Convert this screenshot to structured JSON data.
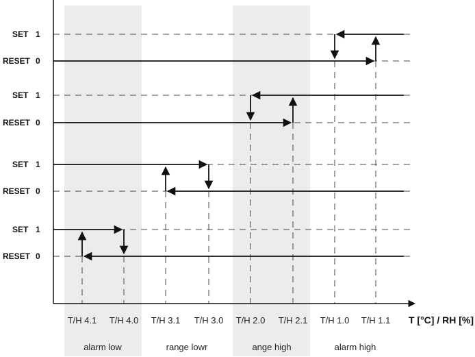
{
  "levels": [
    {
      "set_label": "SET",
      "set_value": "1",
      "reset_label": "RESET",
      "reset_value": "0"
    },
    {
      "set_label": "SET",
      "set_value": "1",
      "reset_label": "RESET",
      "reset_value": "0"
    },
    {
      "set_label": "SET",
      "set_value": "1",
      "reset_label": "RESET",
      "reset_value": "0"
    },
    {
      "set_label": "SET",
      "set_value": "1",
      "reset_label": "RESET",
      "reset_value": "0"
    }
  ],
  "thresholds": [
    "T/H 4.1",
    "T/H 4.0",
    "T/H 3.1",
    "T/H 3.0",
    "T/H 2.0",
    "T/H 2.1",
    "T/H 1.0",
    "T/H 1.1"
  ],
  "x_axis_title": "T [°C] / RH [%]",
  "bands": [
    {
      "label": "alarm low",
      "shaded": true
    },
    {
      "label": "range lowr",
      "shaded": false
    },
    {
      "label": "ange high",
      "shaded": true
    },
    {
      "label": "alarm high",
      "shaded": false
    }
  ],
  "colors": {
    "band": "#ececec",
    "line": "#111111",
    "dash": "#444444"
  }
}
